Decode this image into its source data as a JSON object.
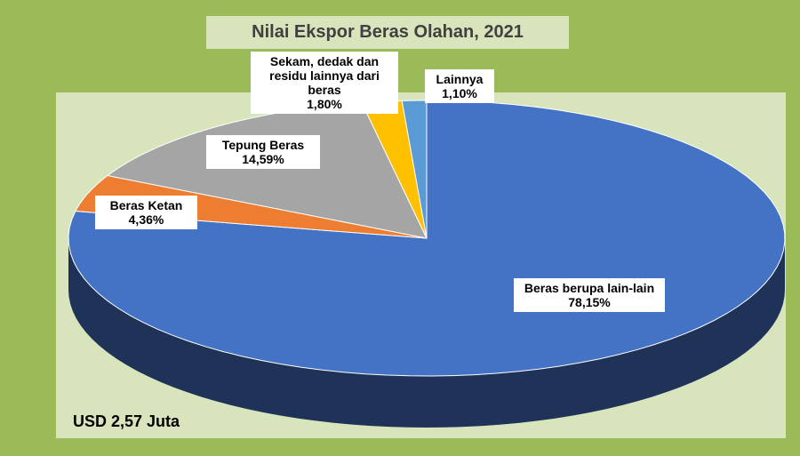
{
  "chart_data": {
    "type": "pie",
    "title": "Nilai Ekspor Beras Olahan, 2021",
    "annotation": "USD 2,57 Juta",
    "categories": [
      "Beras berupa lain-lain",
      "Beras Ketan",
      "Tepung Beras",
      "Sekam, dedak dan residu lainnya dari beras",
      "Lainnya"
    ],
    "values": [
      78.15,
      4.36,
      14.59,
      1.8,
      1.1
    ],
    "value_labels": [
      "78,15%",
      "4,36%",
      "14,59%",
      "1,80%",
      "1,10%"
    ],
    "colors": [
      "#4472c4",
      "#ed7d31",
      "#a5a5a5",
      "#ffc000",
      "#5b9bd5"
    ]
  }
}
